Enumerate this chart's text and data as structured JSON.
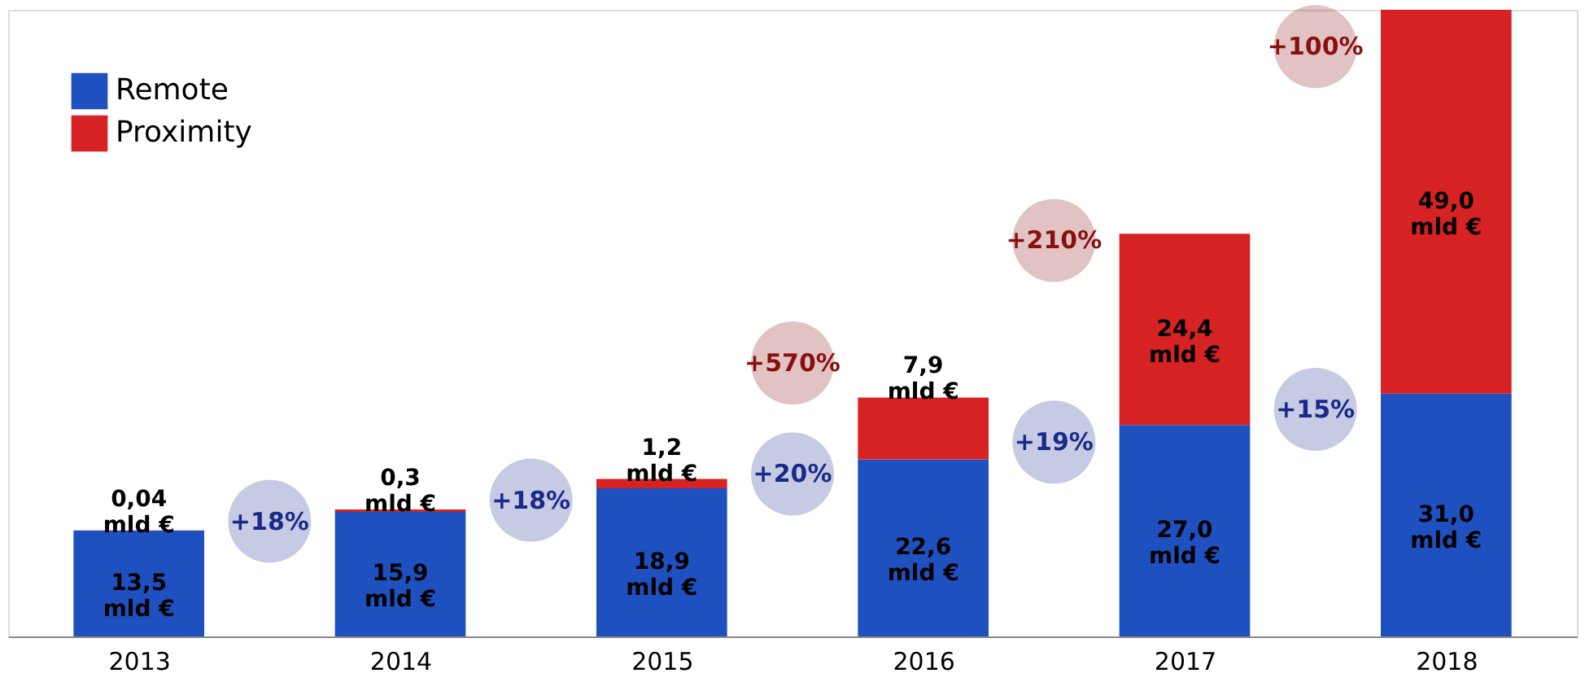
{
  "chart_data": {
    "type": "bar",
    "stacked": true,
    "categories": [
      "2013",
      "2014",
      "2015",
      "2016",
      "2017",
      "2018"
    ],
    "series": [
      {
        "name": "Remote",
        "color": "#1f50c0",
        "values": [
          13.5,
          15.9,
          18.9,
          22.6,
          27.0,
          31.0
        ],
        "value_labels": [
          "13,5\nmld €",
          "15,9\nmld €",
          "18,9\nmld €",
          "22,6\nmld €",
          "27,0\nmld €",
          "31,0\nmld €"
        ]
      },
      {
        "name": "Proximity",
        "color": "#d62222",
        "values": [
          0.04,
          0.3,
          1.2,
          7.9,
          24.4,
          49.0
        ],
        "value_labels": [
          "0,04\nmld €",
          "0,3\nmld €",
          "1,2\nmld €",
          "7,9\nmld €",
          "24,4\nmld €",
          "49,0\nmld €"
        ]
      }
    ],
    "annotations": [
      "+18%",
      "+18%",
      "+20%",
      "+19%",
      "+15%",
      "+570%",
      "+210%",
      "+100%"
    ],
    "legend": "top left"
  }
}
